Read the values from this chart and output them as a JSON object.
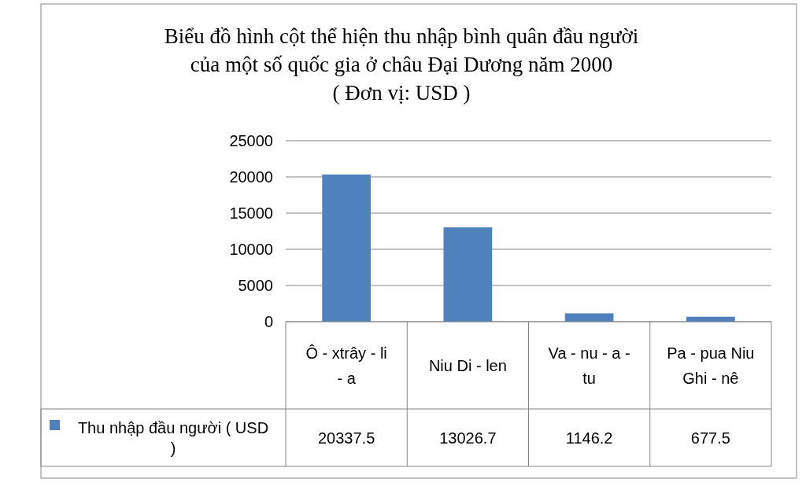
{
  "chart_data": {
    "type": "bar",
    "title": "Biểu đồ hình  cột thể hiện thu nhập bình quân đầu người\ncủa một số quốc gia ở châu Đại Dương năm 2000",
    "subtitle": "( Đơn vị: USD )",
    "categories": [
      "Ô - xtrây - li - a",
      "Niu Di - len",
      "Va - nu - a - tu",
      "Pa - pua Niu Ghi - nê"
    ],
    "series": [
      {
        "name": "Thu nhập đầu người ( USD )",
        "color": "#4f81bd",
        "values": [
          20337.5,
          13026.7,
          1146.2,
          677.5
        ]
      }
    ],
    "ylim": [
      0,
      25000
    ],
    "yticks": [
      0,
      5000,
      10000,
      15000,
      20000,
      25000
    ],
    "grid": "y",
    "legend": "bottom",
    "data_labels": true
  }
}
